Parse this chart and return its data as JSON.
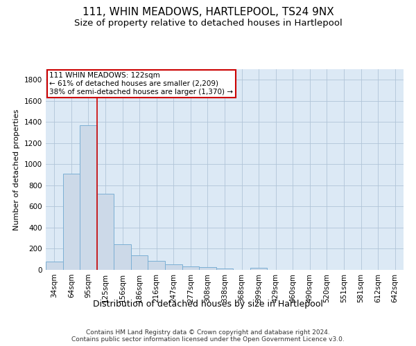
{
  "title": "111, WHIN MEADOWS, HARTLEPOOL, TS24 9NX",
  "subtitle": "Size of property relative to detached houses in Hartlepool",
  "xlabel": "Distribution of detached houses by size in Hartlepool",
  "ylabel": "Number of detached properties",
  "bar_color": "#ccd9e8",
  "bar_edge_color": "#7bafd4",
  "background_color": "#ffffff",
  "plot_bg_color": "#dce9f5",
  "grid_color": "#b0c4d8",
  "annotation_box_color": "#cc0000",
  "vline_color": "#cc0000",
  "annotation_text": "111 WHIN MEADOWS: 122sqm\n← 61% of detached houses are smaller (2,209)\n38% of semi-detached houses are larger (1,370) →",
  "categories": [
    "34sqm",
    "64sqm",
    "95sqm",
    "125sqm",
    "156sqm",
    "186sqm",
    "216sqm",
    "247sqm",
    "277sqm",
    "308sqm",
    "338sqm",
    "368sqm",
    "399sqm",
    "429sqm",
    "460sqm",
    "490sqm",
    "520sqm",
    "551sqm",
    "581sqm",
    "612sqm",
    "642sqm"
  ],
  "values": [
    80,
    910,
    1370,
    720,
    245,
    140,
    85,
    50,
    30,
    25,
    15,
    0,
    20,
    0,
    0,
    0,
    0,
    0,
    0,
    0,
    0
  ],
  "ylim": [
    0,
    1900
  ],
  "yticks": [
    0,
    200,
    400,
    600,
    800,
    1000,
    1200,
    1400,
    1600,
    1800
  ],
  "footer": "Contains HM Land Registry data © Crown copyright and database right 2024.\nContains public sector information licensed under the Open Government Licence v3.0.",
  "title_fontsize": 11,
  "subtitle_fontsize": 9.5,
  "xlabel_fontsize": 9,
  "ylabel_fontsize": 8,
  "tick_fontsize": 7.5,
  "footer_fontsize": 6.5,
  "ann_fontsize": 7.5,
  "vline_bar_index": 2.5
}
